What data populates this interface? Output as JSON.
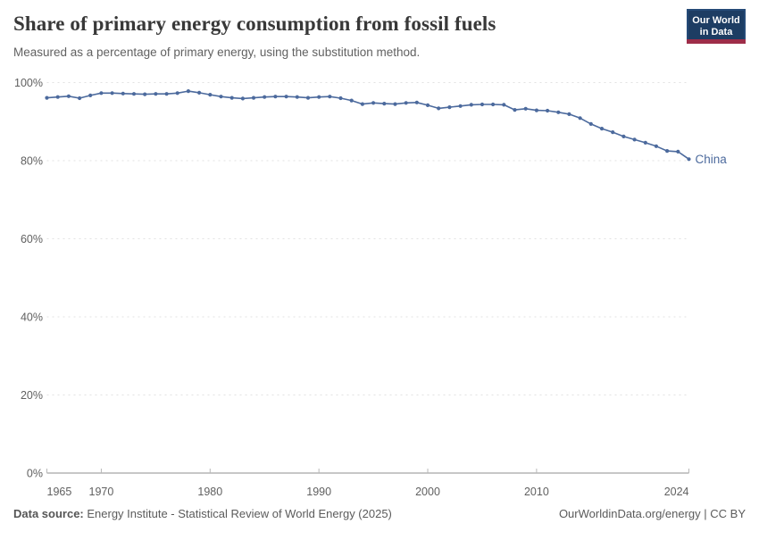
{
  "header": {
    "title": "Share of primary energy consumption from fossil fuels",
    "subtitle": "Measured as a percentage of primary energy, using the substitution method.",
    "logo": {
      "line1": "Our World",
      "line2": "in Data"
    }
  },
  "chart_data": {
    "type": "line",
    "title": "Share of primary energy consumption from fossil fuels",
    "xlabel": "",
    "ylabel": "",
    "xlim": [
      1965,
      2024
    ],
    "ylim": [
      0,
      100
    ],
    "grid": "horizontal-dashed",
    "y_ticks": [
      {
        "value": 0,
        "label": "0%"
      },
      {
        "value": 20,
        "label": "20%"
      },
      {
        "value": 40,
        "label": "40%"
      },
      {
        "value": 60,
        "label": "60%"
      },
      {
        "value": 80,
        "label": "80%"
      },
      {
        "value": 100,
        "label": "100%"
      }
    ],
    "x_ticks": [
      {
        "year": 1965,
        "label": "1965",
        "anchor": "start"
      },
      {
        "year": 1970,
        "label": "1970",
        "anchor": "middle"
      },
      {
        "year": 1980,
        "label": "1980",
        "anchor": "middle"
      },
      {
        "year": 1990,
        "label": "1990",
        "anchor": "middle"
      },
      {
        "year": 2000,
        "label": "2000",
        "anchor": "middle"
      },
      {
        "year": 2010,
        "label": "2010",
        "anchor": "middle"
      },
      {
        "year": 2024,
        "label": "2024",
        "anchor": "end"
      }
    ],
    "series": [
      {
        "name": "China",
        "color": "#4c6a9d",
        "x": [
          1965,
          1966,
          1967,
          1968,
          1969,
          1970,
          1971,
          1972,
          1973,
          1974,
          1975,
          1976,
          1977,
          1978,
          1979,
          1980,
          1981,
          1982,
          1983,
          1984,
          1985,
          1986,
          1987,
          1988,
          1989,
          1990,
          1991,
          1992,
          1993,
          1994,
          1995,
          1996,
          1997,
          1998,
          1999,
          2000,
          2001,
          2002,
          2003,
          2004,
          2005,
          2006,
          2007,
          2008,
          2009,
          2010,
          2011,
          2012,
          2013,
          2014,
          2015,
          2016,
          2017,
          2018,
          2019,
          2020,
          2021,
          2022,
          2023,
          2024
        ],
        "values": [
          96.1,
          96.3,
          96.5,
          96.0,
          96.7,
          97.3,
          97.3,
          97.2,
          97.1,
          97.0,
          97.1,
          97.1,
          97.3,
          97.8,
          97.4,
          96.9,
          96.4,
          96.1,
          95.9,
          96.1,
          96.3,
          96.4,
          96.4,
          96.3,
          96.1,
          96.3,
          96.4,
          96.0,
          95.4,
          94.5,
          94.8,
          94.6,
          94.5,
          94.8,
          94.9,
          94.2,
          93.4,
          93.7,
          94.0,
          94.3,
          94.4,
          94.4,
          94.3,
          93.0,
          93.3,
          92.9,
          92.8,
          92.4,
          91.9,
          90.9,
          89.4,
          88.2,
          87.3,
          86.2,
          85.4,
          84.6,
          83.7,
          82.5,
          82.3,
          80.4
        ]
      }
    ],
    "end_label": "China",
    "colors": {
      "line": "#4c6a9d",
      "grid": "#e2e2e2",
      "axis": "#8f8f8f",
      "tick_text": "#606060"
    }
  },
  "footer": {
    "source_label": "Data source:",
    "source_text": " Energy Institute - Statistical Review of World Energy (2025)",
    "right_text": "OurWorldinData.org/energy | CC BY"
  }
}
